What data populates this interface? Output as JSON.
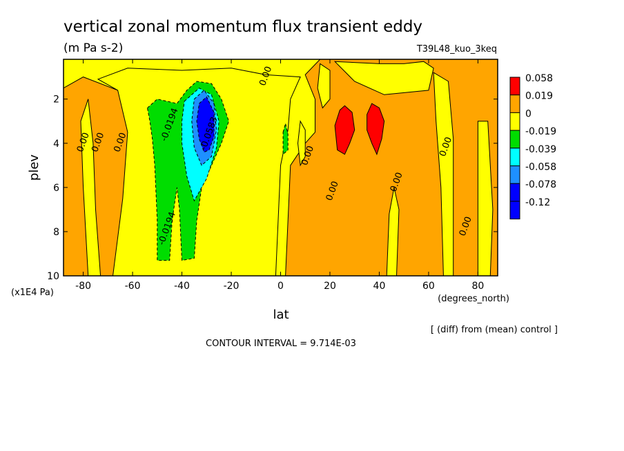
{
  "chart_data": {
    "type": "heatmap",
    "title": "vertical zonal momentum flux transient eddy",
    "units": "(m Pa s-2)",
    "experiment": "T39L48_kuo_3keq",
    "xlabel": "lat",
    "x_units": "(degrees_north)",
    "ylabel": "plev",
    "y_units": "(x1E4 Pa)",
    "xlim": [
      -88,
      88
    ],
    "ylim": [
      10,
      0.2
    ],
    "x_ticks": [
      -80,
      -60,
      -40,
      -20,
      0,
      20,
      40,
      60,
      80
    ],
    "y_ticks": [
      2,
      4,
      6,
      8,
      10
    ],
    "comparison_note": "[ (diff) from (mean) control ]",
    "contour_interval": "CONTOUR INTERVAL = 9.714E-03",
    "legend": {
      "placement": "right",
      "labels": [
        "0.058",
        "0.019",
        "0",
        "-0.019",
        "-0.039",
        "-0.058",
        "-0.078",
        "-0.12"
      ],
      "colors": [
        "#ff0000",
        "#ffa500",
        "#ffff00",
        "#00dd00",
        "#00ffff",
        "#1e90ff",
        "#0000ff",
        "#0000ff"
      ]
    },
    "fill_colors": {
      "band_red": "#ff0000",
      "band_orange": "#ffa500",
      "band_yellow": "#ffff00",
      "band_green": "#00dd00",
      "band_cyan": "#00ffff",
      "band_lightblue": "#1e90ff",
      "band_blue": "#0000ff"
    },
    "contour_labels": [
      {
        "text": "0.00",
        "lat": -5,
        "plev": 1.0
      },
      {
        "text": "-0.0194",
        "lat": -44,
        "plev": 3.2
      },
      {
        "text": "-0.0583",
        "lat": -28,
        "plev": 3.6
      },
      {
        "text": "0.00",
        "lat": -79,
        "plev": 4.0
      },
      {
        "text": "0.00",
        "lat": -73,
        "plev": 4.0
      },
      {
        "text": "0.00",
        "lat": -64,
        "plev": 4.0
      },
      {
        "text": "0.00",
        "lat": 12,
        "plev": 4.6
      },
      {
        "text": "0.00",
        "lat": 22,
        "plev": 6.2
      },
      {
        "text": "0.00",
        "lat": 48,
        "plev": 5.8
      },
      {
        "text": "0.00",
        "lat": 68,
        "plev": 4.2
      },
      {
        "text": "0.00",
        "lat": 76,
        "plev": 7.8
      },
      {
        "text": "-0.0194",
        "lat": -45,
        "plev": 7.9
      }
    ],
    "features": [
      {
        "band": "orange",
        "shape": [
          [
            -88,
            10
          ],
          [
            -88,
            1.5
          ],
          [
            -80,
            1.0
          ],
          [
            -66,
            1.6
          ],
          [
            -60,
            3.5
          ],
          [
            -62,
            6.5
          ],
          [
            -66,
            10
          ]
        ]
      },
      {
        "band": "orange",
        "shape": [
          [
            2,
            10
          ],
          [
            4,
            5.0
          ],
          [
            10,
            4.0
          ],
          [
            14,
            3.5
          ],
          [
            14,
            2.0
          ],
          [
            10,
            0.9
          ],
          [
            16,
            0.2
          ],
          [
            88,
            0.2
          ],
          [
            88,
            10
          ]
        ]
      },
      {
        "band": "orange",
        "shape": [
          [
            -10,
            3.5
          ],
          [
            -12,
            3.0
          ],
          [
            -8,
            1.4
          ],
          [
            -5,
            1.2
          ],
          [
            -3,
            2.0
          ],
          [
            -5,
            2.9
          ]
        ]
      },
      {
        "band": "orange",
        "shape": [
          [
            -12,
            10
          ],
          [
            -12,
            8.2
          ],
          [
            -10,
            7.6
          ],
          [
            -7,
            8.2
          ],
          [
            -6,
            10
          ]
        ]
      },
      {
        "band": "orange",
        "shape": [
          [
            -12,
            6.5
          ],
          [
            -11,
            5.7
          ],
          [
            -9,
            6.2
          ],
          [
            -10,
            7.0
          ]
        ]
      },
      {
        "band": "yellow",
        "shape": [
          [
            -68,
            10
          ],
          [
            -64,
            6.5
          ],
          [
            -62,
            3.5
          ],
          [
            -66,
            1.6
          ],
          [
            -74,
            1.1
          ],
          [
            -62,
            0.6
          ],
          [
            -40,
            0.7
          ],
          [
            -20,
            0.6
          ],
          [
            -6,
            0.9
          ],
          [
            8,
            1.0
          ],
          [
            4,
            2.0
          ],
          [
            3,
            3.4
          ],
          [
            0,
            5.0
          ],
          [
            -2,
            10
          ]
        ]
      },
      {
        "band": "yellow",
        "shape": [
          [
            22,
            0.3
          ],
          [
            40,
            0.4
          ],
          [
            50,
            0.4
          ],
          [
            58,
            0.3
          ],
          [
            62,
            0.6
          ],
          [
            60,
            1.6
          ],
          [
            42,
            1.8
          ],
          [
            30,
            1.2
          ]
        ]
      },
      {
        "band": "yellow",
        "shape": [
          [
            62,
            0.8
          ],
          [
            68,
            1.2
          ],
          [
            70,
            3.8
          ],
          [
            70,
            10
          ],
          [
            66,
            10
          ],
          [
            65,
            6.0
          ],
          [
            63,
            3.0
          ]
        ]
      },
      {
        "band": "yellow",
        "shape": [
          [
            -78,
            10
          ],
          [
            -80,
            6.0
          ],
          [
            -81,
            3.0
          ],
          [
            -78,
            2.0
          ],
          [
            -76,
            4.0
          ],
          [
            -75,
            7.0
          ],
          [
            -73,
            10
          ]
        ]
      },
      {
        "band": "yellow",
        "shape": [
          [
            8,
            3.0
          ],
          [
            10,
            3.4
          ],
          [
            10,
            4.6
          ],
          [
            8,
            5.0
          ],
          [
            7,
            4.0
          ]
        ]
      },
      {
        "band": "yellow",
        "shape": [
          [
            46,
            6.0
          ],
          [
            48,
            7.0
          ],
          [
            47,
            10
          ],
          [
            43,
            10
          ],
          [
            44,
            7.2
          ]
        ]
      },
      {
        "band": "yellow",
        "shape": [
          [
            16,
            0.4
          ],
          [
            20,
            0.7
          ],
          [
            20,
            2.0
          ],
          [
            17,
            2.4
          ],
          [
            15,
            1.5
          ]
        ]
      },
      {
        "band": "yellow",
        "shape": [
          [
            80,
            3.0
          ],
          [
            84,
            3.0
          ],
          [
            86,
            7.0
          ],
          [
            85,
            10
          ],
          [
            80,
            10
          ],
          [
            80,
            6.0
          ]
        ]
      },
      {
        "band": "green",
        "shape": [
          [
            -54,
            2.4
          ],
          [
            -50,
            2.0
          ],
          [
            -42,
            2.2
          ],
          [
            -38,
            1.6
          ],
          [
            -34,
            1.2
          ],
          [
            -28,
            1.3
          ],
          [
            -24,
            2.0
          ],
          [
            -21,
            3.0
          ],
          [
            -24,
            4.0
          ],
          [
            -28,
            5.0
          ],
          [
            -32,
            6.0
          ],
          [
            -34,
            7.5
          ],
          [
            -35,
            9.2
          ],
          [
            -40,
            9.3
          ],
          [
            -41,
            7.0
          ],
          [
            -42,
            6.0
          ],
          [
            -44,
            7.5
          ],
          [
            -45,
            9.3
          ],
          [
            -50,
            9.3
          ],
          [
            -50,
            7.5
          ],
          [
            -51,
            5.0
          ],
          [
            -52,
            3.8
          ],
          [
            -53,
            3.0
          ]
        ]
      },
      {
        "band": "green",
        "shape": [
          [
            1,
            3.5
          ],
          [
            2,
            3.1
          ],
          [
            3,
            3.6
          ],
          [
            3,
            4.3
          ],
          [
            1,
            4.5
          ]
        ]
      },
      {
        "band": "cyan",
        "shape": [
          [
            -39,
            2.1
          ],
          [
            -33,
            1.5
          ],
          [
            -28,
            1.8
          ],
          [
            -25,
            3.0
          ],
          [
            -26,
            4.2
          ],
          [
            -30,
            5.6
          ],
          [
            -35,
            6.6
          ],
          [
            -38,
            5.5
          ],
          [
            -40,
            4.0
          ],
          [
            -40,
            3.0
          ]
        ]
      },
      {
        "band": "lightblue",
        "shape": [
          [
            -35,
            2.0
          ],
          [
            -31,
            1.6
          ],
          [
            -27,
            2.2
          ],
          [
            -26,
            3.4
          ],
          [
            -28,
            4.6
          ],
          [
            -32,
            5.0
          ],
          [
            -35,
            4.2
          ],
          [
            -36,
            3.0
          ]
        ]
      },
      {
        "band": "blue",
        "shape": [
          [
            -33,
            2.2
          ],
          [
            -30,
            1.9
          ],
          [
            -27,
            2.6
          ],
          [
            -27,
            3.7
          ],
          [
            -29,
            4.3
          ],
          [
            -31,
            4.4
          ],
          [
            -33,
            3.8
          ],
          [
            -34,
            3.0
          ]
        ]
      },
      {
        "band": "red",
        "shape": [
          [
            22,
            3.2
          ],
          [
            24,
            2.5
          ],
          [
            26,
            2.3
          ],
          [
            29,
            2.6
          ],
          [
            30,
            3.4
          ],
          [
            28,
            4.0
          ],
          [
            26,
            4.5
          ],
          [
            23,
            4.3
          ]
        ]
      },
      {
        "band": "red",
        "shape": [
          [
            35,
            2.7
          ],
          [
            37,
            2.2
          ],
          [
            40,
            2.4
          ],
          [
            42,
            3.0
          ],
          [
            41,
            3.8
          ],
          [
            39,
            4.5
          ],
          [
            37,
            4.0
          ],
          [
            35,
            3.4
          ]
        ]
      }
    ]
  }
}
